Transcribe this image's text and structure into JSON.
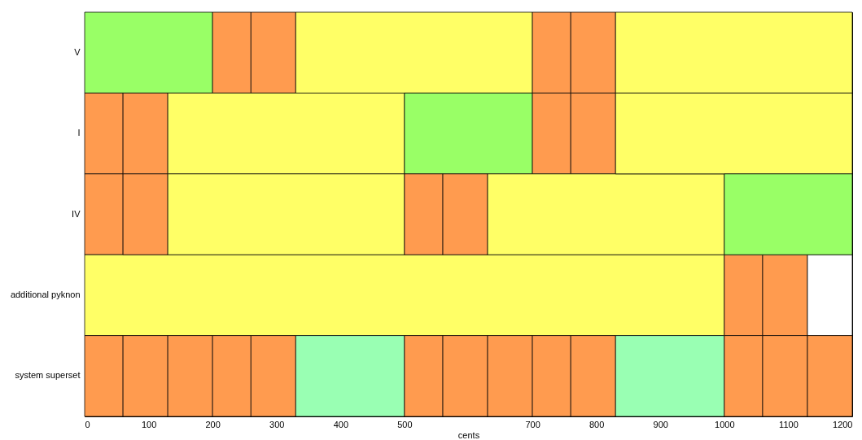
{
  "chart_data": {
    "type": "bar",
    "orientation": "horizontal",
    "stacked": true,
    "xlabel": "cents",
    "categories": [
      "V",
      "I",
      "IV",
      "additional pyknon",
      "system superset"
    ],
    "xlim": [
      0,
      1200
    ],
    "xticks": [
      0,
      100,
      200,
      300,
      400,
      500,
      700,
      800,
      900,
      1000,
      1100,
      1200
    ],
    "grid": false,
    "series": [
      {
        "values": [
          200,
          60,
          60,
          1000,
          60
        ],
        "colors": [
          "#99ff66",
          "#ff9b4f",
          "#ff9b4f",
          "#ffff66",
          "#ff9b4f"
        ]
      },
      {
        "values": [
          60,
          70,
          70,
          60,
          70
        ],
        "colors": [
          "#ff9b4f",
          "#ff9b4f",
          "#ff9b4f",
          "#ff9b4f",
          "#ff9b4f"
        ]
      },
      {
        "values": [
          70,
          370,
          370,
          70,
          70
        ],
        "colors": [
          "#ff9b4f",
          "#ffff66",
          "#ffff66",
          "#ff9b4f",
          "#ff9b4f"
        ]
      },
      {
        "values": [
          370,
          200,
          60,
          70,
          60
        ],
        "colors": [
          "#ffff66",
          "#99ff66",
          "#ff9b4f",
          "#ffffff",
          "#ff9b4f"
        ]
      },
      {
        "values": [
          60,
          60,
          70,
          null,
          70
        ],
        "colors": [
          "#ff9b4f",
          "#ff9b4f",
          "#ff9b4f",
          null,
          "#ff9b4f"
        ]
      },
      {
        "values": [
          70,
          70,
          370,
          null,
          170
        ],
        "colors": [
          "#ff9b4f",
          "#ff9b4f",
          "#ffff66",
          null,
          "#99ffb3"
        ]
      },
      {
        "values": [
          370,
          370,
          200,
          null,
          60
        ],
        "colors": [
          "#ffff66",
          "#ffff66",
          "#99ff66",
          null,
          "#ff9b4f"
        ]
      },
      {
        "values": [
          null,
          null,
          null,
          null,
          70
        ],
        "colors": [
          null,
          null,
          null,
          null,
          "#ff9b4f"
        ]
      },
      {
        "values": [
          null,
          null,
          null,
          null,
          70
        ],
        "colors": [
          null,
          null,
          null,
          null,
          "#ff9b4f"
        ]
      },
      {
        "values": [
          null,
          null,
          null,
          null,
          60
        ],
        "colors": [
          null,
          null,
          null,
          null,
          "#ff9b4f"
        ]
      },
      {
        "values": [
          null,
          null,
          null,
          null,
          70
        ],
        "colors": [
          null,
          null,
          null,
          null,
          "#ff9b4f"
        ]
      },
      {
        "values": [
          null,
          null,
          null,
          null,
          170
        ],
        "colors": [
          null,
          null,
          null,
          null,
          "#99ffb3"
        ]
      },
      {
        "values": [
          null,
          null,
          null,
          null,
          60
        ],
        "colors": [
          null,
          null,
          null,
          null,
          "#ff9b4f"
        ]
      },
      {
        "values": [
          null,
          null,
          null,
          null,
          70
        ],
        "colors": [
          null,
          null,
          null,
          null,
          "#ff9b4f"
        ]
      },
      {
        "values": [
          null,
          null,
          null,
          null,
          70
        ],
        "colors": [
          null,
          null,
          null,
          null,
          "#ff9b4f"
        ]
      }
    ]
  }
}
